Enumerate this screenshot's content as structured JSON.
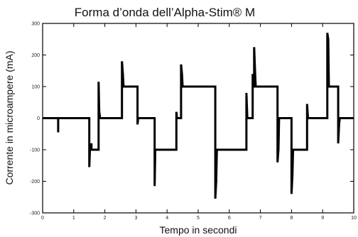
{
  "chart_data": {
    "type": "line",
    "title": "Forma d’onda dell’Alpha-Stim® M",
    "xlabel": "Tempo in secondi",
    "ylabel": "Corrente in microampere (mA)",
    "xlim": [
      0,
      10
    ],
    "ylim": [
      -300,
      300
    ],
    "x_ticks": [
      0,
      1,
      2,
      3,
      4,
      5,
      6,
      7,
      8,
      9,
      10
    ],
    "y_ticks": [
      300,
      200,
      100,
      0,
      -100,
      -200,
      -300
    ],
    "grid": false,
    "series": [
      {
        "points": [
          [
            0,
            0
          ],
          [
            0.5,
            0
          ],
          [
            0.5,
            -45
          ],
          [
            0.5,
            0
          ],
          [
            1.5,
            0
          ],
          [
            1.5,
            -155
          ],
          [
            1.52,
            -100
          ],
          [
            1.57,
            -80
          ],
          [
            1.57,
            -100
          ],
          [
            1.8,
            -100
          ],
          [
            1.8,
            115
          ],
          [
            1.82,
            20
          ],
          [
            1.85,
            0
          ],
          [
            2.55,
            0
          ],
          [
            2.55,
            180
          ],
          [
            2.58,
            140
          ],
          [
            2.6,
            100
          ],
          [
            3.05,
            100
          ],
          [
            3.05,
            -20
          ],
          [
            3.07,
            0
          ],
          [
            3.6,
            0
          ],
          [
            3.6,
            -215
          ],
          [
            3.62,
            -100
          ],
          [
            4.3,
            -100
          ],
          [
            4.3,
            20
          ],
          [
            4.32,
            0
          ],
          [
            4.45,
            0
          ],
          [
            4.45,
            170
          ],
          [
            4.48,
            140
          ],
          [
            4.5,
            100
          ],
          [
            5.55,
            100
          ],
          [
            5.55,
            -255
          ],
          [
            5.58,
            -200
          ],
          [
            5.6,
            -100
          ],
          [
            6.55,
            -100
          ],
          [
            6.55,
            80
          ],
          [
            6.58,
            0
          ],
          [
            6.75,
            0
          ],
          [
            6.75,
            140
          ],
          [
            6.78,
            100
          ],
          [
            6.8,
            100
          ],
          [
            6.8,
            225
          ],
          [
            6.83,
            140
          ],
          [
            6.85,
            100
          ],
          [
            7.55,
            100
          ],
          [
            7.55,
            -140
          ],
          [
            7.58,
            -100
          ],
          [
            7.6,
            0
          ],
          [
            8.0,
            0
          ],
          [
            8.0,
            -240
          ],
          [
            8.03,
            -180
          ],
          [
            8.05,
            -100
          ],
          [
            8.5,
            -100
          ],
          [
            8.5,
            45
          ],
          [
            8.53,
            0
          ],
          [
            9.15,
            0
          ],
          [
            9.15,
            270
          ],
          [
            9.18,
            250
          ],
          [
            9.2,
            100
          ],
          [
            9.5,
            100
          ],
          [
            9.5,
            -80
          ],
          [
            9.53,
            -20
          ],
          [
            9.55,
            0
          ],
          [
            10,
            0
          ]
        ]
      }
    ]
  }
}
